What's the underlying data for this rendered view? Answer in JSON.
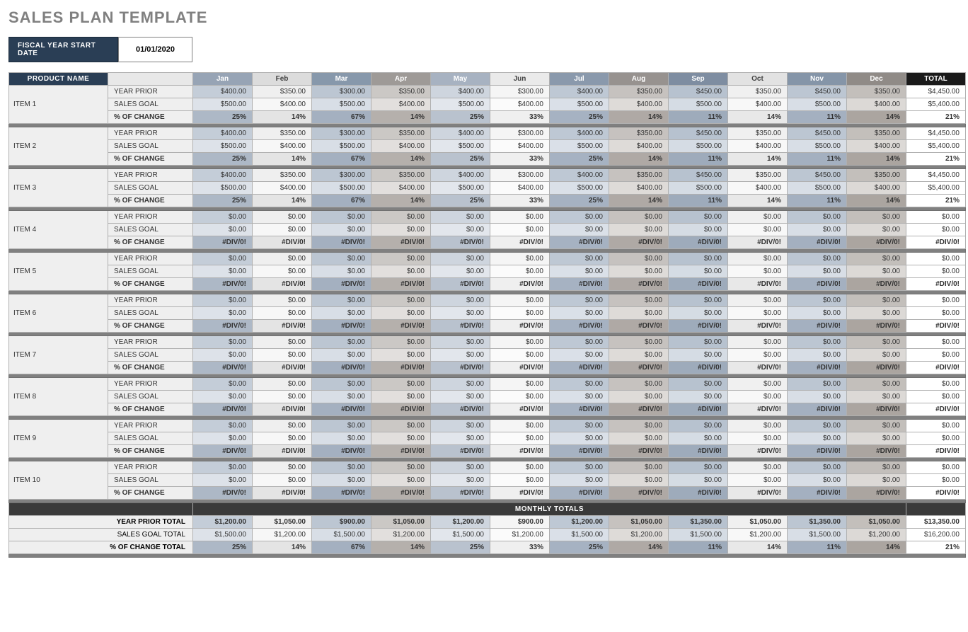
{
  "title": "SALES PLAN TEMPLATE",
  "fiscal": {
    "label": "FISCAL YEAR START DATE",
    "value": "01/01/2020"
  },
  "headers": {
    "productName": "PRODUCT NAME",
    "months": [
      "Jan",
      "Feb",
      "Mar",
      "Apr",
      "May",
      "Jun",
      "Jul",
      "Aug",
      "Sep",
      "Oct",
      "Nov",
      "Dec"
    ],
    "total": "TOTAL"
  },
  "metricLabels": {
    "yearPrior": "YEAR PRIOR",
    "salesGoal": "SALES GOAL",
    "pctChange": "% OF CHANGE"
  },
  "items": [
    {
      "name": "ITEM 1",
      "yearPrior": [
        "$400.00",
        "$350.00",
        "$300.00",
        "$350.00",
        "$400.00",
        "$300.00",
        "$400.00",
        "$350.00",
        "$450.00",
        "$350.00",
        "$450.00",
        "$350.00"
      ],
      "yearPriorTotal": "$4,450.00",
      "salesGoal": [
        "$500.00",
        "$400.00",
        "$500.00",
        "$400.00",
        "$500.00",
        "$400.00",
        "$500.00",
        "$400.00",
        "$500.00",
        "$400.00",
        "$500.00",
        "$400.00"
      ],
      "salesGoalTotal": "$5,400.00",
      "pctChange": [
        "25%",
        "14%",
        "67%",
        "14%",
        "25%",
        "33%",
        "25%",
        "14%",
        "11%",
        "14%",
        "11%",
        "14%"
      ],
      "pctChangeTotal": "21%"
    },
    {
      "name": "ITEM 2",
      "yearPrior": [
        "$400.00",
        "$350.00",
        "$300.00",
        "$350.00",
        "$400.00",
        "$300.00",
        "$400.00",
        "$350.00",
        "$450.00",
        "$350.00",
        "$450.00",
        "$350.00"
      ],
      "yearPriorTotal": "$4,450.00",
      "salesGoal": [
        "$500.00",
        "$400.00",
        "$500.00",
        "$400.00",
        "$500.00",
        "$400.00",
        "$500.00",
        "$400.00",
        "$500.00",
        "$400.00",
        "$500.00",
        "$400.00"
      ],
      "salesGoalTotal": "$5,400.00",
      "pctChange": [
        "25%",
        "14%",
        "67%",
        "14%",
        "25%",
        "33%",
        "25%",
        "14%",
        "11%",
        "14%",
        "11%",
        "14%"
      ],
      "pctChangeTotal": "21%"
    },
    {
      "name": "ITEM 3",
      "yearPrior": [
        "$400.00",
        "$350.00",
        "$300.00",
        "$350.00",
        "$400.00",
        "$300.00",
        "$400.00",
        "$350.00",
        "$450.00",
        "$350.00",
        "$450.00",
        "$350.00"
      ],
      "yearPriorTotal": "$4,450.00",
      "salesGoal": [
        "$500.00",
        "$400.00",
        "$500.00",
        "$400.00",
        "$500.00",
        "$400.00",
        "$500.00",
        "$400.00",
        "$500.00",
        "$400.00",
        "$500.00",
        "$400.00"
      ],
      "salesGoalTotal": "$5,400.00",
      "pctChange": [
        "25%",
        "14%",
        "67%",
        "14%",
        "25%",
        "33%",
        "25%",
        "14%",
        "11%",
        "14%",
        "11%",
        "14%"
      ],
      "pctChangeTotal": "21%"
    },
    {
      "name": "ITEM 4",
      "yearPrior": [
        "$0.00",
        "$0.00",
        "$0.00",
        "$0.00",
        "$0.00",
        "$0.00",
        "$0.00",
        "$0.00",
        "$0.00",
        "$0.00",
        "$0.00",
        "$0.00"
      ],
      "yearPriorTotal": "$0.00",
      "salesGoal": [
        "$0.00",
        "$0.00",
        "$0.00",
        "$0.00",
        "$0.00",
        "$0.00",
        "$0.00",
        "$0.00",
        "$0.00",
        "$0.00",
        "$0.00",
        "$0.00"
      ],
      "salesGoalTotal": "$0.00",
      "pctChange": [
        "#DIV/0!",
        "#DIV/0!",
        "#DIV/0!",
        "#DIV/0!",
        "#DIV/0!",
        "#DIV/0!",
        "#DIV/0!",
        "#DIV/0!",
        "#DIV/0!",
        "#DIV/0!",
        "#DIV/0!",
        "#DIV/0!"
      ],
      "pctChangeTotal": "#DIV/0!"
    },
    {
      "name": "ITEM 5",
      "yearPrior": [
        "$0.00",
        "$0.00",
        "$0.00",
        "$0.00",
        "$0.00",
        "$0.00",
        "$0.00",
        "$0.00",
        "$0.00",
        "$0.00",
        "$0.00",
        "$0.00"
      ],
      "yearPriorTotal": "$0.00",
      "salesGoal": [
        "$0.00",
        "$0.00",
        "$0.00",
        "$0.00",
        "$0.00",
        "$0.00",
        "$0.00",
        "$0.00",
        "$0.00",
        "$0.00",
        "$0.00",
        "$0.00"
      ],
      "salesGoalTotal": "$0.00",
      "pctChange": [
        "#DIV/0!",
        "#DIV/0!",
        "#DIV/0!",
        "#DIV/0!",
        "#DIV/0!",
        "#DIV/0!",
        "#DIV/0!",
        "#DIV/0!",
        "#DIV/0!",
        "#DIV/0!",
        "#DIV/0!",
        "#DIV/0!"
      ],
      "pctChangeTotal": "#DIV/0!"
    },
    {
      "name": "ITEM 6",
      "yearPrior": [
        "$0.00",
        "$0.00",
        "$0.00",
        "$0.00",
        "$0.00",
        "$0.00",
        "$0.00",
        "$0.00",
        "$0.00",
        "$0.00",
        "$0.00",
        "$0.00"
      ],
      "yearPriorTotal": "$0.00",
      "salesGoal": [
        "$0.00",
        "$0.00",
        "$0.00",
        "$0.00",
        "$0.00",
        "$0.00",
        "$0.00",
        "$0.00",
        "$0.00",
        "$0.00",
        "$0.00",
        "$0.00"
      ],
      "salesGoalTotal": "$0.00",
      "pctChange": [
        "#DIV/0!",
        "#DIV/0!",
        "#DIV/0!",
        "#DIV/0!",
        "#DIV/0!",
        "#DIV/0!",
        "#DIV/0!",
        "#DIV/0!",
        "#DIV/0!",
        "#DIV/0!",
        "#DIV/0!",
        "#DIV/0!"
      ],
      "pctChangeTotal": "#DIV/0!"
    },
    {
      "name": "ITEM 7",
      "yearPrior": [
        "$0.00",
        "$0.00",
        "$0.00",
        "$0.00",
        "$0.00",
        "$0.00",
        "$0.00",
        "$0.00",
        "$0.00",
        "$0.00",
        "$0.00",
        "$0.00"
      ],
      "yearPriorTotal": "$0.00",
      "salesGoal": [
        "$0.00",
        "$0.00",
        "$0.00",
        "$0.00",
        "$0.00",
        "$0.00",
        "$0.00",
        "$0.00",
        "$0.00",
        "$0.00",
        "$0.00",
        "$0.00"
      ],
      "salesGoalTotal": "$0.00",
      "pctChange": [
        "#DIV/0!",
        "#DIV/0!",
        "#DIV/0!",
        "#DIV/0!",
        "#DIV/0!",
        "#DIV/0!",
        "#DIV/0!",
        "#DIV/0!",
        "#DIV/0!",
        "#DIV/0!",
        "#DIV/0!",
        "#DIV/0!"
      ],
      "pctChangeTotal": "#DIV/0!"
    },
    {
      "name": "ITEM 8",
      "yearPrior": [
        "$0.00",
        "$0.00",
        "$0.00",
        "$0.00",
        "$0.00",
        "$0.00",
        "$0.00",
        "$0.00",
        "$0.00",
        "$0.00",
        "$0.00",
        "$0.00"
      ],
      "yearPriorTotal": "$0.00",
      "salesGoal": [
        "$0.00",
        "$0.00",
        "$0.00",
        "$0.00",
        "$0.00",
        "$0.00",
        "$0.00",
        "$0.00",
        "$0.00",
        "$0.00",
        "$0.00",
        "$0.00"
      ],
      "salesGoalTotal": "$0.00",
      "pctChange": [
        "#DIV/0!",
        "#DIV/0!",
        "#DIV/0!",
        "#DIV/0!",
        "#DIV/0!",
        "#DIV/0!",
        "#DIV/0!",
        "#DIV/0!",
        "#DIV/0!",
        "#DIV/0!",
        "#DIV/0!",
        "#DIV/0!"
      ],
      "pctChangeTotal": "#DIV/0!"
    },
    {
      "name": "ITEM 9",
      "yearPrior": [
        "$0.00",
        "$0.00",
        "$0.00",
        "$0.00",
        "$0.00",
        "$0.00",
        "$0.00",
        "$0.00",
        "$0.00",
        "$0.00",
        "$0.00",
        "$0.00"
      ],
      "yearPriorTotal": "$0.00",
      "salesGoal": [
        "$0.00",
        "$0.00",
        "$0.00",
        "$0.00",
        "$0.00",
        "$0.00",
        "$0.00",
        "$0.00",
        "$0.00",
        "$0.00",
        "$0.00",
        "$0.00"
      ],
      "salesGoalTotal": "$0.00",
      "pctChange": [
        "#DIV/0!",
        "#DIV/0!",
        "#DIV/0!",
        "#DIV/0!",
        "#DIV/0!",
        "#DIV/0!",
        "#DIV/0!",
        "#DIV/0!",
        "#DIV/0!",
        "#DIV/0!",
        "#DIV/0!",
        "#DIV/0!"
      ],
      "pctChangeTotal": "#DIV/0!"
    },
    {
      "name": "ITEM 10",
      "yearPrior": [
        "$0.00",
        "$0.00",
        "$0.00",
        "$0.00",
        "$0.00",
        "$0.00",
        "$0.00",
        "$0.00",
        "$0.00",
        "$0.00",
        "$0.00",
        "$0.00"
      ],
      "yearPriorTotal": "$0.00",
      "salesGoal": [
        "$0.00",
        "$0.00",
        "$0.00",
        "$0.00",
        "$0.00",
        "$0.00",
        "$0.00",
        "$0.00",
        "$0.00",
        "$0.00",
        "$0.00",
        "$0.00"
      ],
      "salesGoalTotal": "$0.00",
      "pctChange": [
        "#DIV/0!",
        "#DIV/0!",
        "#DIV/0!",
        "#DIV/0!",
        "#DIV/0!",
        "#DIV/0!",
        "#DIV/0!",
        "#DIV/0!",
        "#DIV/0!",
        "#DIV/0!",
        "#DIV/0!",
        "#DIV/0!"
      ],
      "pctChangeTotal": "#DIV/0!"
    }
  ],
  "monthlyTotals": {
    "header": "MONTHLY TOTALS",
    "yearPriorLabel": "YEAR PRIOR TOTAL",
    "yearPrior": [
      "$1,200.00",
      "$1,050.00",
      "$900.00",
      "$1,050.00",
      "$1,200.00",
      "$900.00",
      "$1,200.00",
      "$1,050.00",
      "$1,350.00",
      "$1,050.00",
      "$1,350.00",
      "$1,050.00"
    ],
    "yearPriorGrand": "$13,350.00",
    "salesGoalLabel": "SALES GOAL TOTAL",
    "salesGoal": [
      "$1,500.00",
      "$1,200.00",
      "$1,500.00",
      "$1,200.00",
      "$1,500.00",
      "$1,200.00",
      "$1,500.00",
      "$1,200.00",
      "$1,500.00",
      "$1,200.00",
      "$1,500.00",
      "$1,200.00"
    ],
    "salesGoalGrand": "$16,200.00",
    "pctChangeLabel": "% OF CHANGE TOTAL",
    "pctChange": [
      "25%",
      "14%",
      "67%",
      "14%",
      "25%",
      "33%",
      "25%",
      "14%",
      "11%",
      "14%",
      "11%",
      "14%"
    ],
    "pctChangeGrand": "21%"
  }
}
